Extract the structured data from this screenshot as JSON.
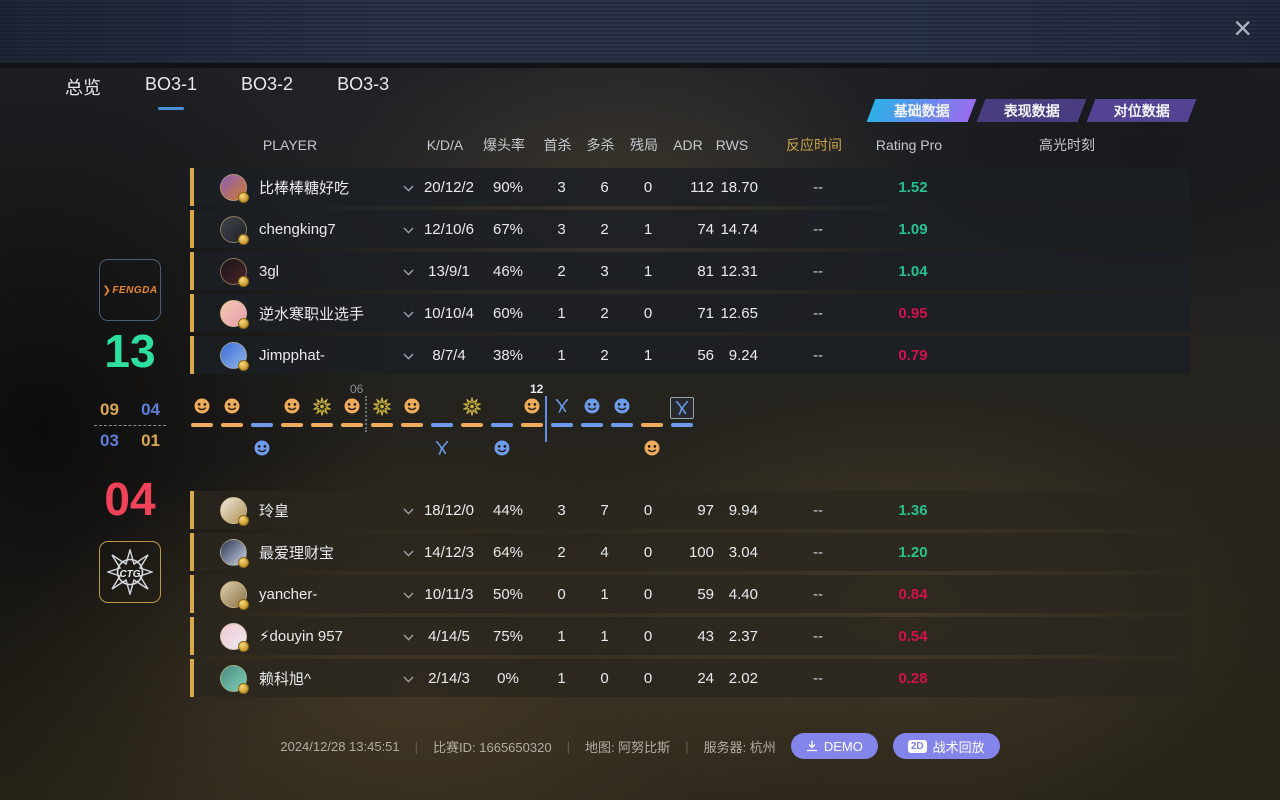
{
  "window": {
    "close_label": "×"
  },
  "nav_tabs": {
    "items": [
      {
        "label": "总览",
        "active": false
      },
      {
        "label": "BO3-1",
        "active": true
      },
      {
        "label": "BO3-2",
        "active": false
      },
      {
        "label": "BO3-3",
        "active": false
      }
    ]
  },
  "data_tabs": {
    "items": [
      {
        "label": "基础数据",
        "active": true
      },
      {
        "label": "表现数据",
        "active": false
      },
      {
        "label": "对位数据",
        "active": false
      }
    ]
  },
  "table": {
    "headers": {
      "player": "PLAYER",
      "kda": "K/D/A",
      "hs": "爆头率",
      "first_kill": "首杀",
      "multi_kill": "多杀",
      "clutch": "残局",
      "adr": "ADR",
      "rws": "RWS",
      "reaction": "反应时间",
      "rating": "Rating Pro",
      "highlight": "高光时刻"
    }
  },
  "colors": {
    "score_win": "#2ee0a0",
    "score_lose": "#f04258",
    "side_gold": "#d9a852",
    "side_blue": "#5f7fd8",
    "timeline_orange": "#eeac5c",
    "timeline_blue": "#6d9bee",
    "rating_up": "#26c28e",
    "rating_down": "#d2114c"
  },
  "team1": {
    "logo_text": "FENGDA",
    "score": "13",
    "half": {
      "first": "09",
      "second": "04"
    },
    "players": [
      {
        "name": "比棒棒糖好吃",
        "kda": "20/12/2",
        "hs": "90%",
        "fk": "3",
        "mk": "6",
        "cl": "0",
        "adr": "112",
        "rws": "18.70",
        "reaction": "--",
        "rating": "1.52",
        "rating_color": "#26c28e"
      },
      {
        "name": "chengking7",
        "kda": "12/10/6",
        "hs": "67%",
        "fk": "3",
        "mk": "2",
        "cl": "1",
        "adr": "74",
        "rws": "14.74",
        "reaction": "--",
        "rating": "1.09",
        "rating_color": "#26c28e"
      },
      {
        "name": "3gl",
        "kda": "13/9/1",
        "hs": "46%",
        "fk": "2",
        "mk": "3",
        "cl": "1",
        "adr": "81",
        "rws": "12.31",
        "reaction": "--",
        "rating": "1.04",
        "rating_color": "#26c28e"
      },
      {
        "name": "逆水寒职业选手",
        "kda": "10/10/4",
        "hs": "60%",
        "fk": "1",
        "mk": "2",
        "cl": "0",
        "adr": "71",
        "rws": "12.65",
        "reaction": "--",
        "rating": "0.95",
        "rating_color": "#d2114c"
      },
      {
        "name": "Jimpphat-",
        "kda": "8/7/4",
        "hs": "38%",
        "fk": "1",
        "mk": "2",
        "cl": "1",
        "adr": "56",
        "rws": "9.24",
        "reaction": "--",
        "rating": "0.79",
        "rating_color": "#d2114c"
      }
    ]
  },
  "team2": {
    "logo_text": "CTG",
    "score": "04",
    "half": {
      "first": "03",
      "second": "01"
    },
    "players": [
      {
        "name": "玲皇",
        "kda": "18/12/0",
        "hs": "44%",
        "fk": "3",
        "mk": "7",
        "cl": "0",
        "adr": "97",
        "rws": "9.94",
        "reaction": "--",
        "rating": "1.36",
        "rating_color": "#26c28e"
      },
      {
        "name": "最爱理财宝",
        "kda": "14/12/3",
        "hs": "64%",
        "fk": "2",
        "mk": "4",
        "cl": "0",
        "adr": "100",
        "rws": "3.04",
        "reaction": "--",
        "rating": "1.20",
        "rating_color": "#26c28e"
      },
      {
        "name": "yancher-",
        "kda": "10/11/3",
        "hs": "50%",
        "fk": "0",
        "mk": "1",
        "cl": "0",
        "adr": "59",
        "rws": "4.40",
        "reaction": "--",
        "rating": "0.84",
        "rating_color": "#d2114c"
      },
      {
        "name": "⚡douyin 957",
        "kda": "4/14/5",
        "hs": "75%",
        "fk": "1",
        "mk": "1",
        "cl": "0",
        "adr": "43",
        "rws": "2.37",
        "reaction": "--",
        "rating": "0.54",
        "rating_color": "#d2114c"
      },
      {
        "name": "赖科旭^",
        "kda": "2/14/3",
        "hs": "0%",
        "fk": "1",
        "mk": "0",
        "cl": "0",
        "adr": "24",
        "rws": "2.02",
        "reaction": "--",
        "rating": "0.28",
        "rating_color": "#d2114c"
      }
    ]
  },
  "timeline": {
    "markers": [
      {
        "label": "06",
        "after_round": 6,
        "style": "dotted"
      },
      {
        "label": "12",
        "after_round": 12,
        "style": "solid"
      }
    ],
    "rounds": [
      {
        "round": 1,
        "winner": "team1",
        "side": "orange",
        "method": "kill"
      },
      {
        "round": 2,
        "winner": "team1",
        "side": "orange",
        "method": "kill"
      },
      {
        "round": 3,
        "winner": "team2",
        "side": "blue",
        "method": "kill"
      },
      {
        "round": 4,
        "winner": "team1",
        "side": "orange",
        "method": "kill"
      },
      {
        "round": 5,
        "winner": "team1",
        "side": "orange",
        "method": "explosion"
      },
      {
        "round": 6,
        "winner": "team1",
        "side": "orange",
        "method": "kill"
      },
      {
        "round": 7,
        "winner": "team1",
        "side": "orange",
        "method": "explosion"
      },
      {
        "round": 8,
        "winner": "team1",
        "side": "orange",
        "method": "kill"
      },
      {
        "round": 9,
        "winner": "team2",
        "side": "blue",
        "method": "defuse"
      },
      {
        "round": 10,
        "winner": "team1",
        "side": "orange",
        "method": "explosion"
      },
      {
        "round": 11,
        "winner": "team2",
        "side": "blue",
        "method": "kill"
      },
      {
        "round": 12,
        "winner": "team1",
        "side": "orange",
        "method": "kill"
      },
      {
        "round": 13,
        "winner": "team1",
        "side": "blue",
        "method": "defuse"
      },
      {
        "round": 14,
        "winner": "team1",
        "side": "blue",
        "method": "kill"
      },
      {
        "round": 15,
        "winner": "team1",
        "side": "blue",
        "method": "kill"
      },
      {
        "round": 16,
        "winner": "team2",
        "side": "orange",
        "method": "kill"
      },
      {
        "round": 17,
        "winner": "team1",
        "side": "blue",
        "method": "defuse",
        "boxed": true
      }
    ]
  },
  "footer": {
    "datetime": "2024/12/28 13:45:51",
    "separator": "|",
    "match_id": "比赛ID: 1665650320",
    "map": "地图: 阿努比斯",
    "server": "服务器: 杭州",
    "demo_label": "DEMO",
    "replay_badge": "2D",
    "replay_label": "战术回放"
  }
}
